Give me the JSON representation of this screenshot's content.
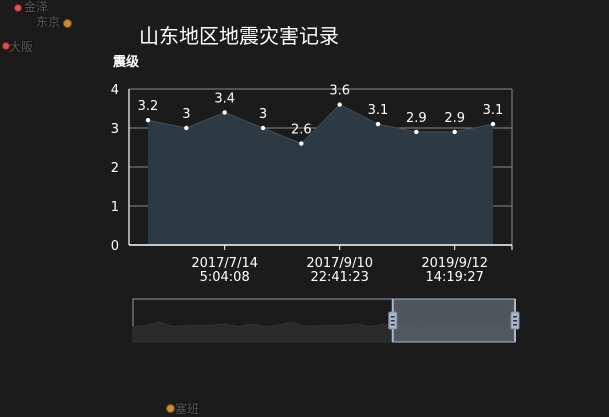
{
  "map_labels": {
    "jinze": "金泽",
    "tokyo": "东京",
    "osaka": "大阪",
    "saipan": "塞班"
  },
  "chart_data": {
    "type": "area",
    "title": "山东地区地震灾害记录",
    "ylabel": "震级",
    "xlabel": "",
    "ylim": [
      0,
      4
    ],
    "yticks": [
      0,
      1,
      2,
      3,
      4
    ],
    "grid": true,
    "legend": "none",
    "x": [
      "",
      "",
      "",
      "",
      "",
      "",
      "",
      "",
      "",
      ""
    ],
    "x_tick_labels": [
      {
        "index": 2,
        "lines": [
          "2017/7/14",
          "5:04:08"
        ]
      },
      {
        "index": 5,
        "lines": [
          "2017/9/10",
          "22:41:23"
        ]
      },
      {
        "index": 8,
        "lines": [
          "2019/9/12",
          "14:19:27"
        ]
      }
    ],
    "series": [
      {
        "values": [
          3.2,
          3,
          3.4,
          3,
          2.6,
          3.6,
          3.1,
          2.9,
          2.9,
          3.1
        ]
      }
    ],
    "colors": {
      "fill": "#2d3a44",
      "line": "#3d4f5c",
      "point": "#ffffff",
      "axis": "#ffffff",
      "grid": "#8a8a8a",
      "zoom_handle": "#a7b7cc",
      "zoom_selected": "#5a6068"
    },
    "datazoom": {
      "start_fraction": 0.68,
      "end_fraction": 1.0
    }
  }
}
